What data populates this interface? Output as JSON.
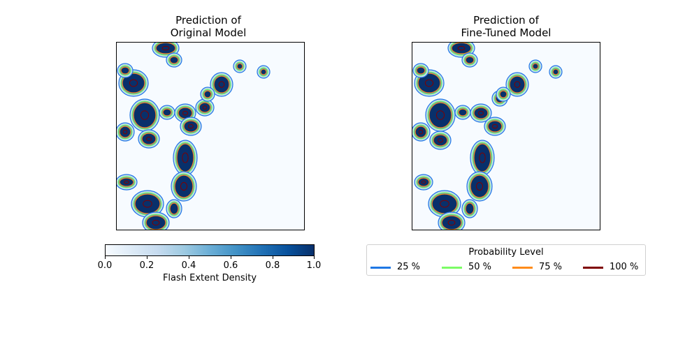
{
  "chart_data": [
    {
      "type": "heatmap",
      "title": "Prediction of\nOriginal Model",
      "title_lines": [
        "Prediction of",
        "Original Model"
      ],
      "xlabel": "",
      "ylabel": "",
      "axes_ticks": "none",
      "description_note": "Flash extent density field with probability contours",
      "colormap": "Blues",
      "value_range": [
        0.0,
        1.0
      ]
    },
    {
      "type": "heatmap",
      "title": "Prediction of\nFine-Tuned Model",
      "title_lines": [
        "Prediction of",
        "Fine-Tuned Model"
      ],
      "xlabel": "",
      "ylabel": "",
      "axes_ticks": "none",
      "colormap": "Blues",
      "value_range": [
        0.0,
        1.0
      ]
    }
  ],
  "colorbar": {
    "label": "Flash Extent Density",
    "ticks": [
      "0.0",
      "0.2",
      "0.4",
      "0.6",
      "0.8",
      "1.0"
    ],
    "range": [
      0.0,
      1.0
    ]
  },
  "legend": {
    "title": "Probability Level",
    "placement": "lower-right",
    "entries": [
      {
        "label": "25 %",
        "color": "#1f77e4"
      },
      {
        "label": "50 %",
        "color": "#7cfc66"
      },
      {
        "label": "75 %",
        "color": "#ff8c1a"
      },
      {
        "label": "100 %",
        "color": "#7f0000"
      }
    ]
  },
  "colors": {
    "dark_blue": "#08306b",
    "mid_blue": "#2171b5",
    "background": "#f7fbff",
    "contour_25": "#1f77e4",
    "contour_50": "#7cfc66",
    "contour_75": "#ff8c1a",
    "contour_100": "#7f0000"
  }
}
